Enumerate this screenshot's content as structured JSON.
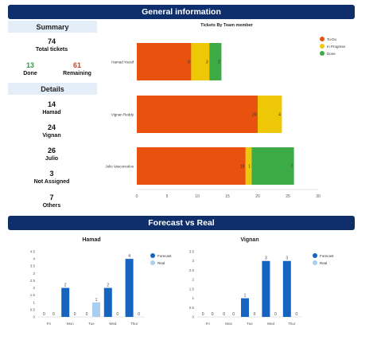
{
  "header": {
    "general_title": "General information",
    "forecast_title": "Forecast vs Real"
  },
  "summary": {
    "heading": "Summary",
    "total": {
      "value": "74",
      "label": "Total tickets"
    },
    "done": {
      "value": "13",
      "label": "Done",
      "color": "#2e9e3e"
    },
    "remaining": {
      "value": "61",
      "label": "Remaining",
      "color": "#d93a1e"
    }
  },
  "details": {
    "heading": "Details",
    "items": [
      {
        "value": "14",
        "label": "Hamad"
      },
      {
        "value": "24",
        "label": "Vignan"
      },
      {
        "value": "26",
        "label": "Julio"
      },
      {
        "value": "3",
        "label": "Not Assigned"
      },
      {
        "value": "7",
        "label": "Others"
      }
    ]
  },
  "chart_data": [
    {
      "type": "bar",
      "orientation": "horizontal",
      "stacked": true,
      "title": "Tickets By Team member",
      "categories": [
        "Hamad Yousif",
        "Vignan Reddy",
        "Julio Vasconcelos"
      ],
      "series": [
        {
          "name": "To-Do",
          "color": "#e8520e",
          "values": [
            9,
            20,
            18
          ]
        },
        {
          "name": "In Progress",
          "color": "#eec806",
          "values": [
            3,
            4,
            1
          ]
        },
        {
          "name": "Done",
          "color": "#3cab46",
          "values": [
            2,
            0,
            7
          ]
        }
      ],
      "data_labels": [
        [
          "9",
          "3",
          "2"
        ],
        [
          "20",
          "4",
          ""
        ],
        [
          "18",
          "1",
          "7"
        ]
      ],
      "xlim": [
        0,
        30
      ],
      "xticks": [
        0,
        5,
        10,
        15,
        20,
        25,
        30
      ],
      "legend": "top-right",
      "grid": false
    },
    {
      "type": "bar",
      "title": "Hamad",
      "categories": [
        "Fri",
        "Mon",
        "Tue",
        "Wed",
        "Thur"
      ],
      "series": [
        {
          "name": "Forecast",
          "color": "#1565c0",
          "values": [
            0,
            2,
            0,
            2,
            4
          ]
        },
        {
          "name": "Real",
          "color": "#a8cff0",
          "values": [
            0,
            0,
            1,
            0,
            0
          ]
        }
      ],
      "ylim": [
        0,
        4.5
      ],
      "yticks": [
        "0",
        "0.5",
        "1",
        "1.5",
        "2",
        "2.5",
        "3",
        "3.5",
        "4",
        "4.5"
      ],
      "legend": "right",
      "grid": false
    },
    {
      "type": "bar",
      "title": "Vignan",
      "categories": [
        "Fri",
        "Mon",
        "Tue",
        "Wed",
        "Thur"
      ],
      "series": [
        {
          "name": "Forecast",
          "color": "#1565c0",
          "values": [
            0,
            0,
            1,
            3,
            3
          ]
        },
        {
          "name": "Real",
          "color": "#a8cff0",
          "values": [
            0,
            0,
            0,
            0,
            0
          ]
        }
      ],
      "ylim": [
        0,
        3.5
      ],
      "yticks": [
        "0",
        "0.5",
        "1",
        "1.5",
        "2",
        "2.5",
        "3",
        "3.5"
      ],
      "legend": "right",
      "grid": false
    }
  ]
}
